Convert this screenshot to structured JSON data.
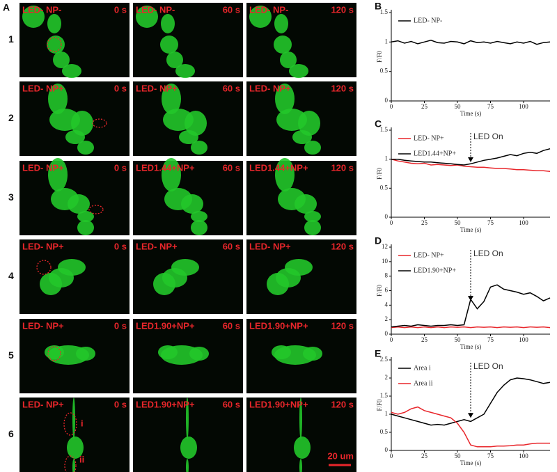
{
  "panel_a": {
    "letter": "A",
    "rows": [
      {
        "label": "1",
        "cells": [
          {
            "condition": "LED- NP-",
            "time": "0 s"
          },
          {
            "condition": "LED- NP-",
            "time": "60 s"
          },
          {
            "condition": "LED- NP-",
            "time": "120 s"
          }
        ]
      },
      {
        "label": "2",
        "cells": [
          {
            "condition": "LED- NP+",
            "time": "0 s"
          },
          {
            "condition": "LED- NP+",
            "time": "60 s"
          },
          {
            "condition": "LED- NP+",
            "time": "120 s"
          }
        ]
      },
      {
        "label": "3",
        "cells": [
          {
            "condition": "LED- NP+",
            "time": "0 s"
          },
          {
            "condition": "LED1.44+NP+",
            "time": "60 s"
          },
          {
            "condition": "LED1.44+NP+",
            "time": "120 s"
          }
        ]
      },
      {
        "label": "4",
        "cells": [
          {
            "condition": "LED- NP+",
            "time": "0 s"
          },
          {
            "condition": "LED- NP+",
            "time": "60 s"
          },
          {
            "condition": "LED- NP+",
            "time": "120 s"
          }
        ]
      },
      {
        "label": "5",
        "cells": [
          {
            "condition": "LED- NP+",
            "time": "0 s"
          },
          {
            "condition": "LED1.90+NP+",
            "time": "60 s"
          },
          {
            "condition": "LED1.90+NP+",
            "time": "120 s"
          }
        ]
      },
      {
        "label": "6",
        "cells": [
          {
            "condition": "LED- NP+",
            "time": "0 s"
          },
          {
            "condition": "LED1.90+NP+",
            "time": "60 s"
          },
          {
            "condition": "LED1.90+NP+",
            "time": "120 s"
          }
        ]
      }
    ],
    "roi_labels": [
      "i",
      "ii"
    ],
    "scale_bar": "20 um"
  },
  "chart_data": [
    {
      "type": "line",
      "panel": "B",
      "x_label": "Time (s)",
      "y_label": "F/F0",
      "x": [
        0,
        5,
        10,
        15,
        20,
        25,
        30,
        35,
        40,
        45,
        50,
        55,
        60,
        65,
        70,
        75,
        80,
        85,
        90,
        95,
        100,
        105,
        110,
        115,
        120
      ],
      "xlim": [
        0,
        120
      ],
      "xticks": [
        0,
        25,
        50,
        75,
        100
      ],
      "ylim": [
        0,
        1.5
      ],
      "yticks": [
        0,
        0.5,
        1,
        1.5
      ],
      "series": [
        {
          "name": "LED- NP-",
          "color": "#000000",
          "values": [
            1,
            1.02,
            0.98,
            1.01,
            0.97,
            1,
            1.03,
            0.99,
            0.98,
            1.01,
            1,
            0.97,
            1.02,
            0.99,
            1,
            0.98,
            1.01,
            0.99,
            0.97,
            1,
            0.98,
            1.01,
            0.96,
            0.99,
            1
          ]
        }
      ]
    },
    {
      "type": "line",
      "panel": "C",
      "x_label": "Time (s)",
      "y_label": "F/F0",
      "x": [
        0,
        5,
        10,
        15,
        20,
        25,
        30,
        35,
        40,
        45,
        50,
        55,
        60,
        65,
        70,
        75,
        80,
        85,
        90,
        95,
        100,
        105,
        110,
        115,
        120
      ],
      "xlim": [
        0,
        120
      ],
      "xticks": [
        0,
        25,
        50,
        75,
        100
      ],
      "ylim": [
        0,
        1.5
      ],
      "yticks": [
        0,
        0.5,
        1,
        1.5
      ],
      "annotation": {
        "text": "LED On",
        "x": 60,
        "y": 0.95
      },
      "series": [
        {
          "name": "LED- NP+",
          "color": "#e8262b",
          "values": [
            1,
            0.97,
            0.95,
            0.93,
            0.92,
            0.93,
            0.9,
            0.91,
            0.9,
            0.89,
            0.9,
            0.88,
            0.87,
            0.86,
            0.86,
            0.85,
            0.84,
            0.84,
            0.83,
            0.82,
            0.82,
            0.81,
            0.8,
            0.8,
            0.79
          ]
        },
        {
          "name": "LED1.44+NP+",
          "color": "#000000",
          "values": [
            1,
            1,
            0.98,
            0.97,
            0.96,
            0.95,
            0.95,
            0.94,
            0.93,
            0.92,
            0.91,
            0.9,
            0.92,
            0.95,
            0.98,
            1,
            1.02,
            1.05,
            1.08,
            1.06,
            1.1,
            1.12,
            1.1,
            1.15,
            1.18
          ]
        }
      ]
    },
    {
      "type": "line",
      "panel": "D",
      "x_label": "Time (s)",
      "y_label": "F/F0",
      "x": [
        0,
        5,
        10,
        15,
        20,
        25,
        30,
        35,
        40,
        45,
        50,
        55,
        60,
        65,
        70,
        75,
        80,
        85,
        90,
        95,
        100,
        105,
        110,
        115,
        120
      ],
      "xlim": [
        0,
        120
      ],
      "xticks": [
        0,
        25,
        50,
        75,
        100
      ],
      "ylim": [
        0,
        12
      ],
      "yticks": [
        0,
        2,
        4,
        6,
        8,
        10,
        12
      ],
      "annotation": {
        "text": "LED On",
        "x": 60,
        "y": 4.6
      },
      "series": [
        {
          "name": "LED- NP+",
          "color": "#e8262b",
          "values": [
            0.9,
            1,
            0.9,
            1,
            0.9,
            1,
            0.9,
            1,
            0.9,
            1,
            0.95,
            1,
            0.9,
            1,
            0.95,
            1,
            0.9,
            1,
            0.95,
            1,
            0.9,
            1,
            0.95,
            1,
            0.9
          ]
        },
        {
          "name": "LED1.90+NP+",
          "color": "#000000",
          "values": [
            1,
            1.1,
            1.2,
            1.1,
            1.3,
            1.2,
            1.1,
            1.2,
            1.2,
            1.3,
            1.2,
            1.3,
            4.8,
            3.5,
            4.5,
            6.5,
            6.8,
            6.2,
            6,
            5.8,
            5.5,
            5.7,
            5.2,
            4.6,
            5
          ]
        }
      ]
    },
    {
      "type": "line",
      "panel": "E",
      "x_label": "Time (s)",
      "y_label": "F/F0",
      "x": [
        0,
        5,
        10,
        15,
        20,
        25,
        30,
        35,
        40,
        45,
        50,
        55,
        60,
        65,
        70,
        75,
        80,
        85,
        90,
        95,
        100,
        105,
        110,
        115,
        120
      ],
      "xlim": [
        0,
        120
      ],
      "xticks": [
        0,
        25,
        50,
        75,
        100
      ],
      "ylim": [
        0,
        2.5
      ],
      "yticks": [
        0,
        0.5,
        1,
        1.5,
        2,
        2.5
      ],
      "annotation": {
        "text": "LED On",
        "x": 60,
        "y": 0.9
      },
      "series": [
        {
          "name": "Area  i",
          "color": "#000000",
          "values": [
            1,
            0.95,
            0.9,
            0.85,
            0.8,
            0.75,
            0.7,
            0.72,
            0.7,
            0.75,
            0.8,
            0.85,
            0.8,
            0.9,
            1,
            1.3,
            1.6,
            1.8,
            1.95,
            2,
            1.98,
            1.95,
            1.9,
            1.85,
            1.88
          ]
        },
        {
          "name": "Area ii",
          "color": "#e8262b",
          "values": [
            1.05,
            1,
            1.05,
            1.15,
            1.2,
            1.1,
            1.05,
            1,
            0.95,
            0.9,
            0.75,
            0.5,
            0.15,
            0.1,
            0.1,
            0.1,
            0.12,
            0.12,
            0.13,
            0.15,
            0.15,
            0.18,
            0.2,
            0.2,
            0.2
          ]
        }
      ]
    }
  ]
}
